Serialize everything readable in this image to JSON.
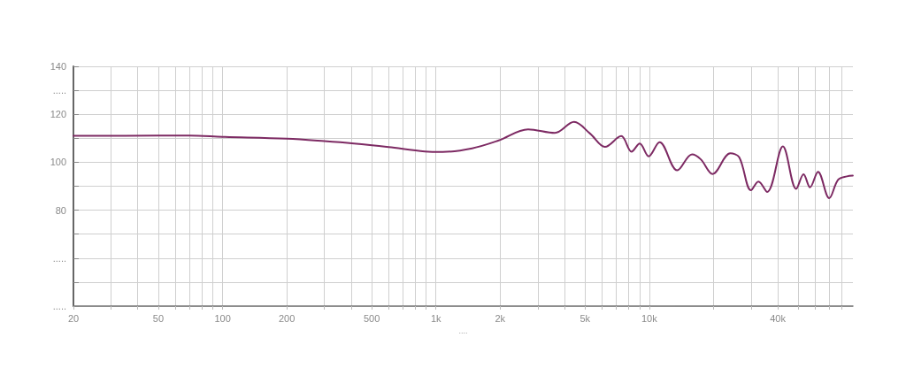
{
  "chart_data": {
    "type": "line",
    "xlabel": "....",
    "x": [
      20,
      50,
      70,
      100,
      200,
      300,
      413,
      600,
      887,
      1076,
      1477,
      1969,
      2705,
      3606,
      4438,
      5283,
      6197,
      7384,
      8257,
      9019,
      9929,
      11170,
      13520,
      15860,
      17430,
      19800,
      23980,
      26390,
      29970,
      32460,
      35700,
      42270,
      48790,
      52840,
      56650,
      61760,
      69710,
      76740,
      84400,
      89900
    ],
    "series": [
      {
        "color": "#7d2a63",
        "values": [
          111,
          111.1,
          111.1,
          110.6,
          109.8,
          108.8,
          107.8,
          106.3,
          104.5,
          104.3,
          105.8,
          109.1,
          113.7,
          112.2,
          116.8,
          111.9,
          106.4,
          110.9,
          104.4,
          107.8,
          102.5,
          108.4,
          96.6,
          103.3,
          101.2,
          95.1,
          103.7,
          102.1,
          88.3,
          91.9,
          87.6,
          106.6,
          88.9,
          95.0,
          89.5,
          96.0,
          85.0,
          92.7,
          94.1,
          94.4
        ]
      }
    ],
    "log": "x",
    "xlim": [
      20,
      90000
    ],
    "xticks": [
      20,
      {
        "value": 30,
        "label": null
      },
      {
        "value": 40,
        "label": null
      },
      50,
      {
        "value": 60,
        "label": null
      },
      {
        "value": 70,
        "label": null
      },
      {
        "value": 80,
        "label": null
      },
      {
        "value": 90,
        "label": null
      },
      100,
      200,
      {
        "value": 300,
        "label": null
      },
      {
        "value": 400,
        "label": null
      },
      500,
      {
        "value": 600,
        "label": null
      },
      {
        "value": 700,
        "label": null
      },
      {
        "value": 800,
        "label": null
      },
      {
        "value": 900,
        "label": null
      },
      {
        "value": 1000,
        "label": "1k"
      },
      {
        "value": 2000,
        "label": "2k"
      },
      {
        "value": 3000,
        "label": null
      },
      {
        "value": 4000,
        "label": null
      },
      {
        "value": 5000,
        "label": "5k"
      },
      {
        "value": 6000,
        "label": null
      },
      {
        "value": 7000,
        "label": null
      },
      {
        "value": 8000,
        "label": null
      },
      {
        "value": 9000,
        "label": null
      },
      {
        "value": 10000,
        "label": "10k"
      },
      {
        "value": 20000,
        "label": null
      },
      {
        "value": 30000,
        "label": null
      },
      {
        "value": 40000,
        "label": "40k"
      },
      {
        "value": 50000,
        "label": null
      },
      {
        "value": 60000,
        "label": null
      },
      {
        "value": 70000,
        "label": null
      },
      {
        "value": 80000,
        "label": null
      }
    ],
    "ylim": [
      40,
      140
    ],
    "yticks": [
      {
        "value": 40,
        "label": "....."
      },
      {
        "value": 50,
        "label": null
      },
      {
        "value": 60,
        "label": "....."
      },
      {
        "value": 70,
        "label": null
      },
      80,
      {
        "value": 90,
        "label": null
      },
      100,
      {
        "value": 110,
        "label": null
      },
      120,
      {
        "value": 130,
        "label": "....."
      },
      140
    ],
    "grid": true,
    "marker": "none",
    "line_style": "solid"
  }
}
